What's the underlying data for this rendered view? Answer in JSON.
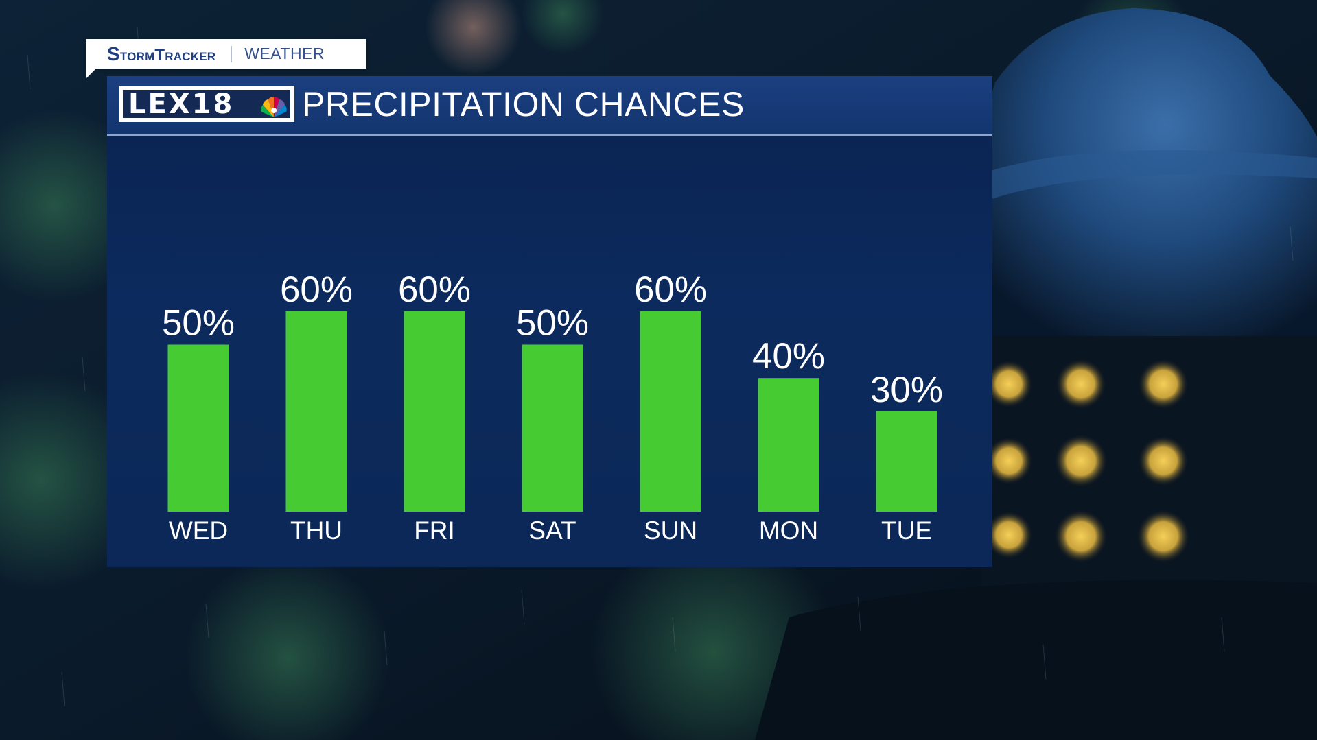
{
  "brand": {
    "name": "StormTracker",
    "subtitle": "WEATHER"
  },
  "header": {
    "logo_text": "LEX18",
    "logo_icon": "peacock-icon",
    "title": "PRECIPITATION CHANCES"
  },
  "colors": {
    "bar": "#46cc32",
    "panel": "#0c2a5d",
    "header": "#1b3f80",
    "brand_text": "#1f3f84"
  },
  "chart_data": {
    "type": "bar",
    "title": "PRECIPITATION CHANCES",
    "categories": [
      "WED",
      "THU",
      "FRI",
      "SAT",
      "SUN",
      "MON",
      "TUE"
    ],
    "values": [
      50,
      60,
      60,
      50,
      60,
      40,
      30
    ],
    "value_labels": [
      "50%",
      "60%",
      "60%",
      "50%",
      "60%",
      "40%",
      "30%"
    ],
    "unit": "%",
    "ylim": [
      0,
      100
    ],
    "grid": false,
    "legend": "none"
  }
}
